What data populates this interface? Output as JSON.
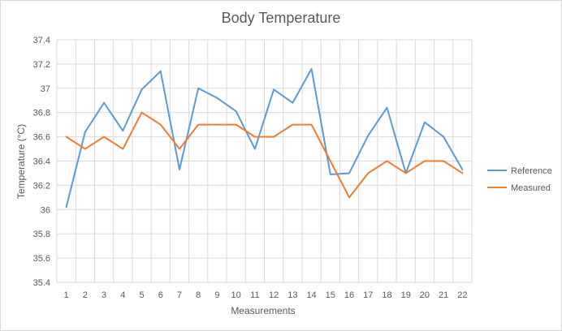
{
  "chart_data": {
    "type": "line",
    "title": "Body Temperature",
    "xlabel": "Measurements",
    "ylabel": "Temperature (°C)",
    "ylim": [
      35.4,
      37.4
    ],
    "y_ticks": [
      "35.4",
      "35.6",
      "35.8",
      "36",
      "36.2",
      "36.4",
      "36.6",
      "36.8",
      "37",
      "37.2",
      "37.4"
    ],
    "categories": [
      "1",
      "2",
      "3",
      "4",
      "5",
      "6",
      "7",
      "8",
      "9",
      "10",
      "11",
      "12",
      "13",
      "14",
      "15",
      "16",
      "17",
      "18",
      "19",
      "20",
      "21",
      "22"
    ],
    "grid": true,
    "legend_position": "right",
    "series": [
      {
        "name": "Reference",
        "color": "#5b9bd5",
        "values": [
          36.02,
          36.64,
          36.88,
          36.65,
          36.99,
          37.14,
          36.33,
          37.0,
          36.92,
          36.81,
          36.5,
          36.99,
          36.88,
          37.16,
          36.29,
          36.3,
          36.61,
          36.84,
          36.3,
          36.72,
          36.6,
          36.33
        ]
      },
      {
        "name": "Measured",
        "color": "#ed7d31",
        "values": [
          36.6,
          36.5,
          36.6,
          36.5,
          36.8,
          36.7,
          36.5,
          36.7,
          36.7,
          36.7,
          36.6,
          36.6,
          36.7,
          36.7,
          36.4,
          36.1,
          36.3,
          36.4,
          36.3,
          36.4,
          36.4,
          36.3
        ]
      }
    ]
  }
}
